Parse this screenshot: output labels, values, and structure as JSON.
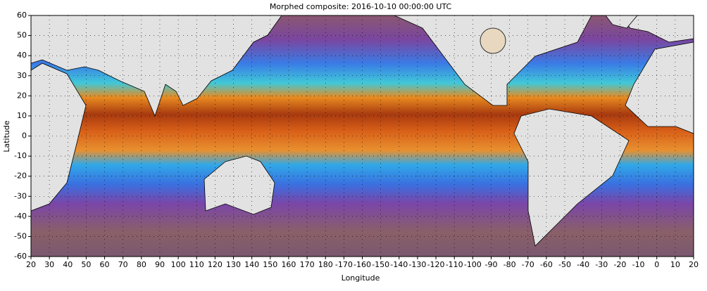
{
  "title": "Morphed composite: 2016-10-10 00:00:00 UTC",
  "x_axis_label": "Longitude",
  "y_axis_label": "Latitude",
  "lon_ticks": [
    20,
    30,
    40,
    50,
    60,
    70,
    80,
    90,
    100,
    110,
    120,
    130,
    140,
    150,
    160,
    170,
    180,
    -170,
    -160,
    -150,
    -140,
    -130,
    -120,
    -110,
    -100,
    -90,
    -80,
    -70,
    -60,
    -50,
    -40,
    -30,
    -20,
    -10,
    0,
    10,
    20
  ],
  "lat_ticks": [
    60,
    50,
    40,
    30,
    20,
    10,
    0,
    -10,
    -20,
    -30,
    -40,
    -50,
    -60
  ]
}
